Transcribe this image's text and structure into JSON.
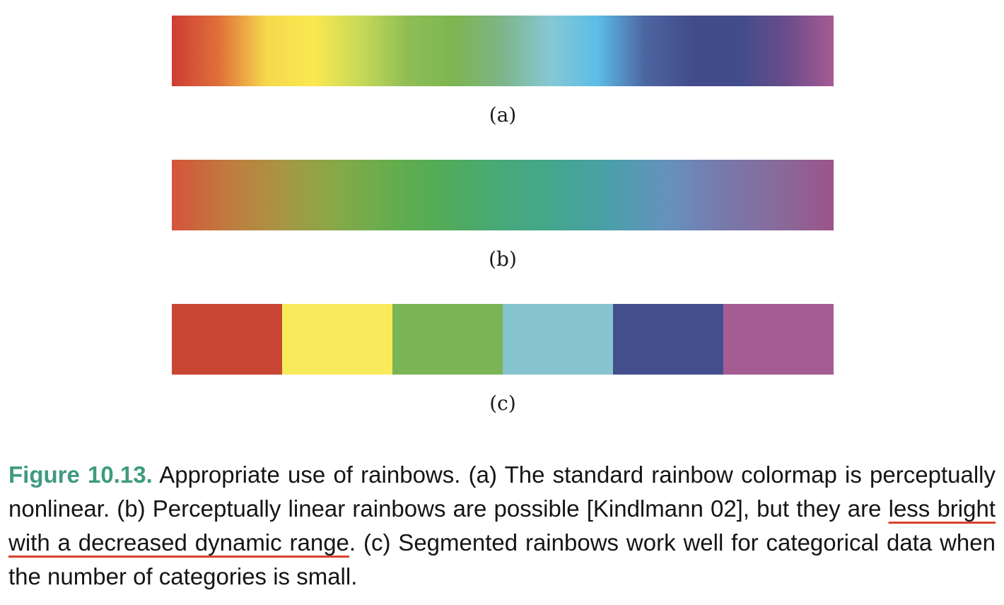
{
  "colormaps": {
    "standard": {
      "label": "(a)",
      "stops": [
        "#cd3d34",
        "#e0703a",
        "#f6d84d",
        "#fae850",
        "#c6d958",
        "#8ebd55",
        "#7db552",
        "#7db58a",
        "#86c8d5",
        "#5cbde6",
        "#4d66a2",
        "#424c8b",
        "#424c8b",
        "#6a4c8b",
        "#a65b93"
      ]
    },
    "perceptual": {
      "label": "(b)",
      "stops": [
        "#d5543c",
        "#c07a3e",
        "#a89644",
        "#86a948",
        "#64ad4d",
        "#50ab5b",
        "#47a97a",
        "#43a68f",
        "#4c9eaa",
        "#6691bd",
        "#7779ab",
        "#886a9b",
        "#9b5489"
      ]
    },
    "segmented": {
      "label": "(c)",
      "segments": [
        "#c94534",
        "#f8ea5b",
        "#7ab455",
        "#86c4cf",
        "#434f8c",
        "#a55c92"
      ]
    }
  },
  "caption": {
    "label": "Figure 10.13.",
    "text_before": " Appropriate use of rainbows.  (a) The standard rainbow colormap is perceptually nonlinear.  (b) Perceptually linear rainbows are possible [Kindlmann 02], but they are ",
    "highlight": "less bright with a decreased dynamic range",
    "text_after": ". (c) Segmented rainbows work well for categorical data when the number of categories is small."
  }
}
